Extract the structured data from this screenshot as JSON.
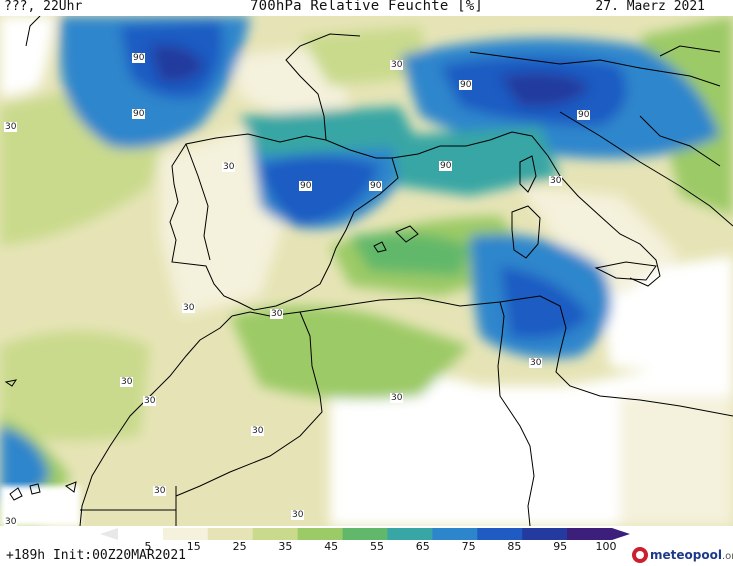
{
  "header": {
    "left": "???, 22Uhr",
    "title": "700hPa Relative Feuchte [%]",
    "right": "27. Maerz 2021"
  },
  "footer": {
    "left": "+189h Init:00Z20MAR2021",
    "brand": "meteopool",
    "brand_suffix": ".org"
  },
  "legend": {
    "ticks": [
      "5",
      "15",
      "25",
      "35",
      "45",
      "55",
      "65",
      "75",
      "85",
      "95",
      "100"
    ],
    "colors": [
      "#ffffff",
      "#f4f1dc",
      "#e6e4b6",
      "#c9da8c",
      "#9cca66",
      "#62b86a",
      "#38a6a4",
      "#2d86cc",
      "#1f5bc3",
      "#243a9e",
      "#3b1f7a"
    ]
  },
  "contour_labels": {
    "high": "90",
    "low": "30"
  },
  "colors": {
    "c5": "#ffffff",
    "c15": "#f4f1dc",
    "c25": "#e6e4b6",
    "c35": "#c9da8c",
    "c45": "#9cca66",
    "c55": "#62b86a",
    "c65": "#38a6a4",
    "c75": "#2d86cc",
    "c85": "#1f5bc3",
    "c95": "#243a9e",
    "c100": "#3b1f7a",
    "grey_land": "#d7d7d7"
  }
}
